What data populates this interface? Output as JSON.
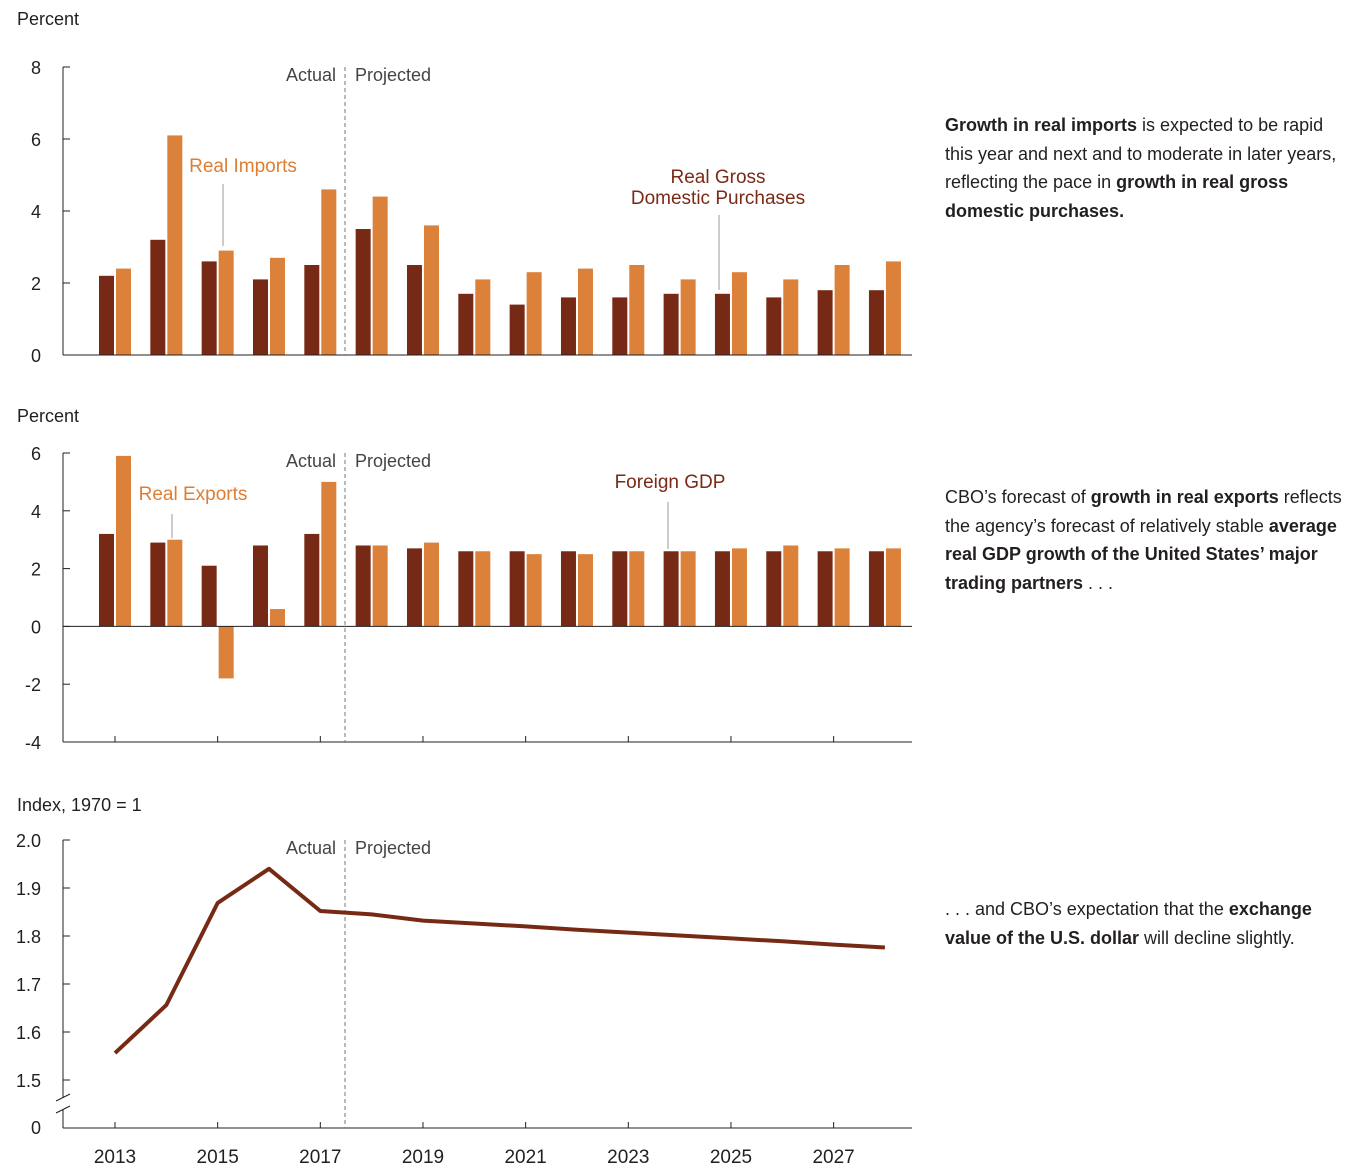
{
  "colors": {
    "dark": "#762a16",
    "light": "#dc8139",
    "axis": "#231f20",
    "label_dark": "#7a2a16",
    "label_light": "#e07d32",
    "leader": "#9a9a9a"
  },
  "periods": {
    "actual": "Actual",
    "projected": "Projected"
  },
  "chart_data": [
    {
      "type": "bar",
      "ylabel": "Percent",
      "ylim": [
        0,
        8
      ],
      "yticks": [
        "0",
        "2",
        "4",
        "6",
        "8"
      ],
      "categories": [
        2013,
        2014,
        2015,
        2016,
        2017,
        2018,
        2019,
        2020,
        2021,
        2022,
        2023,
        2024,
        2025,
        2026,
        2027,
        2028
      ],
      "series": [
        {
          "name": "Real Gross Domestic Purchases",
          "label_lines": [
            "Real Gross",
            "Domestic Purchases"
          ],
          "values": [
            2.2,
            3.2,
            2.6,
            2.1,
            2.5,
            3.5,
            2.5,
            1.7,
            1.4,
            1.6,
            1.6,
            1.7,
            1.7,
            1.6,
            1.8,
            1.8
          ]
        },
        {
          "name": "Real Imports",
          "label_lines": [
            "Real Imports"
          ],
          "values": [
            2.4,
            6.1,
            2.9,
            2.7,
            4.6,
            4.4,
            3.6,
            2.1,
            2.3,
            2.4,
            2.5,
            2.1,
            2.3,
            2.1,
            2.5,
            2.6
          ]
        }
      ]
    },
    {
      "type": "bar",
      "ylabel": "Percent",
      "ylim": [
        -4,
        6
      ],
      "yticks": [
        "-4",
        "-2",
        "0",
        "2",
        "4",
        "6"
      ],
      "categories": [
        2013,
        2014,
        2015,
        2016,
        2017,
        2018,
        2019,
        2020,
        2021,
        2022,
        2023,
        2024,
        2025,
        2026,
        2027,
        2028
      ],
      "series": [
        {
          "name": "Foreign GDP",
          "label_lines": [
            "Foreign GDP"
          ],
          "values": [
            3.2,
            2.9,
            2.1,
            2.8,
            3.2,
            2.8,
            2.7,
            2.6,
            2.6,
            2.6,
            2.6,
            2.6,
            2.6,
            2.6,
            2.6,
            2.6
          ]
        },
        {
          "name": "Real Exports",
          "label_lines": [
            "Real Exports"
          ],
          "values": [
            5.9,
            3.0,
            -1.8,
            0.6,
            5.0,
            2.8,
            2.9,
            2.6,
            2.5,
            2.5,
            2.6,
            2.6,
            2.7,
            2.8,
            2.7,
            2.7
          ]
        }
      ]
    },
    {
      "type": "line",
      "ylabel": "Index, 1970 = 1",
      "ylim": [
        1.5,
        2.0
      ],
      "yticks": [
        "1.5",
        "1.6",
        "1.7",
        "1.8",
        "1.9",
        "2.0"
      ],
      "ybreak_label": "0",
      "x": [
        2013,
        2014,
        2015,
        2016,
        2017,
        2018,
        2019,
        2020,
        2021,
        2022,
        2023,
        2024,
        2025,
        2026,
        2027,
        2028
      ],
      "xticks": [
        "2013",
        "2015",
        "2017",
        "2019",
        "2021",
        "2023",
        "2025",
        "2027"
      ],
      "values": [
        1.556,
        1.656,
        1.869,
        1.94,
        1.852,
        1.845,
        1.832,
        1.826,
        1.82,
        1.813,
        1.807,
        1.801,
        1.795,
        1.789,
        1.782,
        1.776
      ]
    }
  ],
  "notes": [
    [
      {
        "b": true,
        "t": "Growth in real imports"
      },
      {
        "b": false,
        "t": " is expected to be rapid this year and next and to moderate in later years, reflecting the pace in "
      },
      {
        "b": true,
        "t": "growth in real gross domestic purchases."
      }
    ],
    [
      {
        "b": false,
        "t": "CBO’s forecast of "
      },
      {
        "b": true,
        "t": "growth in real exports"
      },
      {
        "b": false,
        "t": " reflects the agency’s forecast of relatively stable "
      },
      {
        "b": true,
        "t": "average real GDP growth of the United States’ major trading partners"
      },
      {
        "b": false,
        "t": " . . ."
      }
    ],
    [
      {
        "b": false,
        "t": ". . . and CBO’s expectation that the "
      },
      {
        "b": true,
        "t": "exchange value of the U.S. dollar"
      },
      {
        "b": false,
        "t": " will decline slightly."
      }
    ]
  ]
}
